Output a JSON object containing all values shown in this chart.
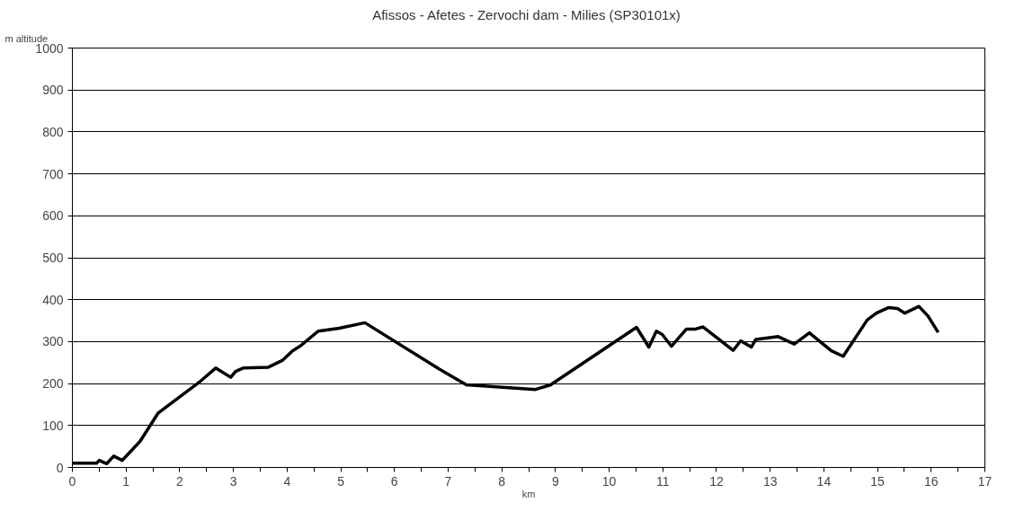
{
  "chart_data": {
    "type": "line",
    "title": "Afissos - Afetes - Zervochi  dam - Milies (SP30101x)",
    "xlabel": "km",
    "ylabel": "m altitude",
    "x": [
      0,
      0.45,
      0.5,
      0.64,
      0.77,
      0.93,
      1.26,
      1.6,
      2.39,
      2.67,
      2.95,
      3.04,
      3.18,
      3.65,
      3.91,
      4.1,
      4.24,
      4.58,
      4.97,
      5.45,
      6.83,
      7.34,
      8.63,
      8.91,
      10.51,
      10.74,
      10.88,
      10.99,
      11.16,
      11.44,
      11.61,
      11.75,
      12.31,
      12.45,
      12.65,
      12.73,
      13.15,
      13.45,
      13.73,
      14.14,
      14.36,
      14.81,
      14.98,
      15.2,
      15.37,
      15.51,
      15.77,
      15.94,
      16.13
    ],
    "series": [
      {
        "color": "#000000",
        "values": [
          10,
          10,
          17,
          9,
          27,
          17,
          62,
          130,
          206,
          237,
          215,
          229,
          237,
          239,
          255,
          278,
          289,
          325,
          332,
          345,
          235,
          197,
          186,
          197,
          334,
          287,
          325,
          317,
          289,
          330,
          330,
          335,
          279,
          302,
          287,
          305,
          312,
          294,
          321,
          278,
          265,
          352,
          368,
          381,
          379,
          368,
          384,
          361,
          322
        ]
      }
    ],
    "xlim": [
      0,
      17
    ],
    "xticks": [
      0,
      {
        "value": 0.5,
        "label": null
      },
      1,
      {
        "value": 1.5,
        "label": null
      },
      2,
      {
        "value": 2.5,
        "label": null
      },
      3,
      {
        "value": 3.5,
        "label": null
      },
      4,
      {
        "value": 4.5,
        "label": null
      },
      5,
      {
        "value": 5.5,
        "label": null
      },
      6,
      {
        "value": 6.5,
        "label": null
      },
      7,
      {
        "value": 7.5,
        "label": null
      },
      8,
      {
        "value": 8.5,
        "label": null
      },
      9,
      {
        "value": 9.5,
        "label": null
      },
      10,
      {
        "value": 10.5,
        "label": null
      },
      11,
      {
        "value": 11.5,
        "label": null
      },
      12,
      {
        "value": 12.5,
        "label": null
      },
      13,
      {
        "value": 13.5,
        "label": null
      },
      14,
      {
        "value": 14.5,
        "label": null
      },
      15,
      {
        "value": 15.5,
        "label": null
      },
      16,
      {
        "value": 16.5,
        "label": null
      },
      17
    ],
    "ylim": [
      0,
      1000
    ],
    "yticks": [
      0,
      100,
      200,
      300,
      400,
      500,
      600,
      700,
      800,
      900,
      1000
    ],
    "grid": "y",
    "marker": "none",
    "line_style": "solid"
  }
}
